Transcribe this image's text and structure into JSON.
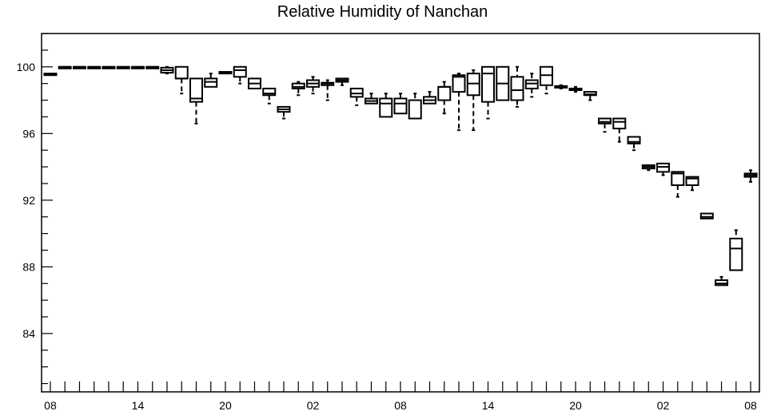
{
  "chart_data": {
    "type": "box",
    "title": "Relative Humidity of Nanchan",
    "xlabel": "",
    "ylabel": "",
    "ylim": [
      80.5,
      102
    ],
    "xlim": [
      -0.6,
      48.6
    ],
    "y_ticks": [
      84,
      88,
      92,
      96,
      100
    ],
    "x_ticks": [
      {
        "x": 0,
        "label": "08"
      },
      {
        "x": 6,
        "label": "14"
      },
      {
        "x": 12,
        "label": "20"
      },
      {
        "x": 18,
        "label": "02"
      },
      {
        "x": 24,
        "label": "08"
      },
      {
        "x": 30,
        "label": "14"
      },
      {
        "x": 36,
        "label": "20"
      },
      {
        "x": 42,
        "label": "02"
      },
      {
        "x": 48,
        "label": "08"
      }
    ],
    "grid": false,
    "boxes": [
      {
        "x": 0,
        "min": 99.5,
        "q1": 99.5,
        "median": 99.55,
        "q3": 99.6,
        "max": 99.6
      },
      {
        "x": 1,
        "min": 100,
        "q1": 100,
        "median": 100,
        "q3": 100,
        "max": 100
      },
      {
        "x": 2,
        "min": 100,
        "q1": 100,
        "median": 100,
        "q3": 100,
        "max": 100
      },
      {
        "x": 3,
        "min": 100,
        "q1": 100,
        "median": 100,
        "q3": 100,
        "max": 100
      },
      {
        "x": 4,
        "min": 100,
        "q1": 100,
        "median": 100,
        "q3": 100,
        "max": 100
      },
      {
        "x": 5,
        "min": 100,
        "q1": 100,
        "median": 100,
        "q3": 100,
        "max": 100
      },
      {
        "x": 6,
        "min": 100,
        "q1": 100,
        "median": 100,
        "q3": 100,
        "max": 100
      },
      {
        "x": 7,
        "min": 100,
        "q1": 100,
        "median": 100,
        "q3": 100,
        "max": 100
      },
      {
        "x": 8,
        "min": 99.6,
        "q1": 99.65,
        "median": 99.8,
        "q3": 99.95,
        "max": 100
      },
      {
        "x": 9,
        "min": 98.4,
        "q1": 99.3,
        "median": 99.3,
        "q3": 100,
        "max": 100
      },
      {
        "x": 10,
        "min": 96.6,
        "q1": 97.9,
        "median": 98.1,
        "q3": 99.3,
        "max": 99.3
      },
      {
        "x": 11,
        "min": 98.8,
        "q1": 98.8,
        "median": 99.1,
        "q3": 99.3,
        "max": 99.6
      },
      {
        "x": 12,
        "min": 99.6,
        "q1": 99.6,
        "median": 99.65,
        "q3": 99.7,
        "max": 99.7
      },
      {
        "x": 13,
        "min": 99.0,
        "q1": 99.4,
        "median": 99.8,
        "q3": 100,
        "max": 100
      },
      {
        "x": 14,
        "min": 98.7,
        "q1": 98.7,
        "median": 99.0,
        "q3": 99.3,
        "max": 99.3
      },
      {
        "x": 15,
        "min": 97.8,
        "q1": 98.3,
        "median": 98.4,
        "q3": 98.7,
        "max": 98.7
      },
      {
        "x": 16,
        "min": 96.9,
        "q1": 97.3,
        "median": 97.45,
        "q3": 97.6,
        "max": 97.6
      },
      {
        "x": 17,
        "min": 98.3,
        "q1": 98.7,
        "median": 98.8,
        "q3": 99.0,
        "max": 99.1
      },
      {
        "x": 18,
        "min": 98.4,
        "q1": 98.8,
        "median": 99.0,
        "q3": 99.2,
        "max": 99.4
      },
      {
        "x": 19,
        "min": 98.0,
        "q1": 98.9,
        "median": 99.0,
        "q3": 99.05,
        "max": 99.2
      },
      {
        "x": 20,
        "min": 98.9,
        "q1": 99.1,
        "median": 99.2,
        "q3": 99.3,
        "max": 99.3
      },
      {
        "x": 21,
        "min": 97.7,
        "q1": 98.2,
        "median": 98.4,
        "q3": 98.7,
        "max": 98.7
      },
      {
        "x": 22,
        "min": 97.8,
        "q1": 97.8,
        "median": 97.95,
        "q3": 98.1,
        "max": 98.4
      },
      {
        "x": 23,
        "min": 97.0,
        "q1": 97.0,
        "median": 97.8,
        "q3": 98.1,
        "max": 98.4
      },
      {
        "x": 24,
        "min": 97.2,
        "q1": 97.2,
        "median": 97.8,
        "q3": 98.1,
        "max": 98.4
      },
      {
        "x": 25,
        "min": 96.9,
        "q1": 96.9,
        "median": 96.9,
        "q3": 98.0,
        "max": 98.4
      },
      {
        "x": 26,
        "min": 97.8,
        "q1": 97.8,
        "median": 98.0,
        "q3": 98.2,
        "max": 98.5
      },
      {
        "x": 27,
        "min": 97.2,
        "q1": 98.0,
        "median": 98.8,
        "q3": 98.8,
        "max": 99.1
      },
      {
        "x": 28,
        "min": 96.2,
        "q1": 98.5,
        "median": 99.4,
        "q3": 99.5,
        "max": 99.6
      },
      {
        "x": 29,
        "min": 96.2,
        "q1": 98.3,
        "median": 99.0,
        "q3": 99.6,
        "max": 99.8
      },
      {
        "x": 30,
        "min": 96.9,
        "q1": 97.9,
        "median": 99.6,
        "q3": 100,
        "max": 100
      },
      {
        "x": 31,
        "min": 98.0,
        "q1": 98.0,
        "median": 99.0,
        "q3": 100,
        "max": 100
      },
      {
        "x": 32,
        "min": 97.6,
        "q1": 98.0,
        "median": 98.6,
        "q3": 99.4,
        "max": 100
      },
      {
        "x": 33,
        "min": 98.2,
        "q1": 98.7,
        "median": 99.0,
        "q3": 99.2,
        "max": 99.6
      },
      {
        "x": 34,
        "min": 98.4,
        "q1": 98.9,
        "median": 99.5,
        "q3": 100,
        "max": 100
      },
      {
        "x": 35,
        "min": 98.7,
        "q1": 98.75,
        "median": 98.8,
        "q3": 98.85,
        "max": 98.9
      },
      {
        "x": 36,
        "min": 98.5,
        "q1": 98.6,
        "median": 98.65,
        "q3": 98.7,
        "max": 98.8
      },
      {
        "x": 37,
        "min": 98.0,
        "q1": 98.3,
        "median": 98.35,
        "q3": 98.5,
        "max": 98.5
      },
      {
        "x": 38,
        "min": 96.1,
        "q1": 96.6,
        "median": 96.7,
        "q3": 96.9,
        "max": 96.9
      },
      {
        "x": 39,
        "min": 95.5,
        "q1": 96.3,
        "median": 96.7,
        "q3": 96.9,
        "max": 96.9
      },
      {
        "x": 40,
        "min": 95.0,
        "q1": 95.4,
        "median": 95.5,
        "q3": 95.8,
        "max": 95.8
      },
      {
        "x": 41,
        "min": 93.8,
        "q1": 93.9,
        "median": 94.0,
        "q3": 94.1,
        "max": 94.1
      },
      {
        "x": 42,
        "min": 93.5,
        "q1": 93.7,
        "median": 94.0,
        "q3": 94.2,
        "max": 94.2
      },
      {
        "x": 43,
        "min": 92.2,
        "q1": 92.9,
        "median": 93.6,
        "q3": 93.7,
        "max": 93.7
      },
      {
        "x": 44,
        "min": 92.6,
        "q1": 92.9,
        "median": 93.3,
        "q3": 93.4,
        "max": 93.4
      },
      {
        "x": 45,
        "min": 90.9,
        "q1": 90.9,
        "median": 91.0,
        "q3": 91.2,
        "max": 91.2
      },
      {
        "x": 46,
        "min": 86.9,
        "q1": 86.9,
        "median": 87.0,
        "q3": 87.2,
        "max": 87.4
      },
      {
        "x": 47,
        "min": 87.8,
        "q1": 87.8,
        "median": 89.1,
        "q3": 89.7,
        "max": 90.2
      },
      {
        "x": 48,
        "min": 93.1,
        "q1": 93.4,
        "median": 93.5,
        "q3": 93.6,
        "max": 93.8
      }
    ]
  }
}
